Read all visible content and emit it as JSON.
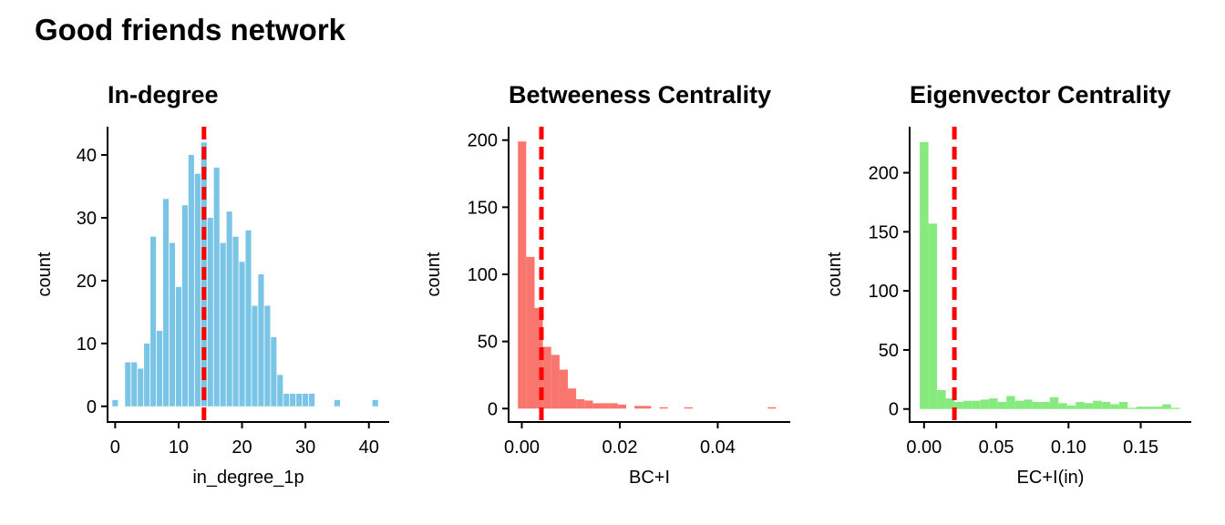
{
  "title": "Good friends network",
  "chart_data": [
    {
      "type": "bar",
      "title": "In-degree",
      "xlabel": "in_degree_1p",
      "ylabel": "count",
      "color": "#7ac4e6",
      "reference_line": {
        "x": 14,
        "color": "#ff0000",
        "style": "dashed"
      },
      "xlim": [
        -1.2,
        43.2
      ],
      "ylim": [
        -2.5,
        44.5
      ],
      "xticks": [
        0,
        10,
        20,
        30,
        40
      ],
      "yticks": [
        0,
        10,
        20,
        30,
        40
      ],
      "x": [
        0,
        1,
        2,
        3,
        4,
        5,
        6,
        7,
        8,
        9,
        10,
        11,
        12,
        13,
        14,
        15,
        16,
        17,
        18,
        19,
        20,
        21,
        22,
        23,
        24,
        25,
        26,
        27,
        28,
        29,
        30,
        31,
        32,
        33,
        34,
        35,
        36,
        37,
        38,
        39,
        40,
        41
      ],
      "values": [
        1,
        0,
        7,
        7,
        6,
        10,
        27,
        12,
        33,
        26,
        19,
        32,
        40,
        37,
        42,
        30,
        38,
        26,
        31,
        27,
        23,
        28,
        16,
        21,
        16,
        11,
        5,
        2,
        2,
        2,
        2,
        2,
        0,
        0,
        0,
        1,
        0,
        0,
        0,
        0,
        0,
        1
      ]
    },
    {
      "type": "bar",
      "title": "Betweeness Centrality",
      "xlabel": "BC+I",
      "ylabel": "count",
      "color": "#f8766d",
      "reference_line": {
        "x": 0.004,
        "color": "#ff0000",
        "style": "dashed"
      },
      "xlim": [
        -0.0027,
        0.0548
      ],
      "ylim": [
        -10,
        210
      ],
      "xticks": [
        0.0,
        0.02,
        0.04
      ],
      "xtick_labels": [
        "0.00",
        "0.02",
        "0.04"
      ],
      "yticks": [
        0,
        50,
        100,
        150,
        200
      ],
      "bin_width": 0.0017,
      "x": [
        5e-05,
        0.00175,
        0.00345,
        0.00515,
        0.00685,
        0.00855,
        0.01025,
        0.01195,
        0.01365,
        0.01535,
        0.01705,
        0.01875,
        0.02045,
        0.02215,
        0.02385,
        0.02555,
        0.02725,
        0.02895,
        0.03065,
        0.03235,
        0.03405,
        0.03575,
        0.03745,
        0.03915,
        0.04085,
        0.04255,
        0.04425,
        0.04595,
        0.04765,
        0.04935,
        0.05105
      ],
      "values": [
        199,
        113,
        75,
        46,
        40,
        29,
        15,
        7,
        6,
        4,
        4,
        4,
        3,
        0,
        2,
        2,
        0,
        1,
        0,
        0,
        1,
        0,
        0,
        0,
        0,
        0,
        0,
        0,
        0,
        0,
        1
      ]
    },
    {
      "type": "bar",
      "title": "Eigenvector Centrality",
      "xlabel": "EC+I(in)",
      "ylabel": "count",
      "color": "#87ea7e",
      "reference_line": {
        "x": 0.021,
        "color": "#ff0000",
        "style": "dashed"
      },
      "xlim": [
        -0.01,
        0.185
      ],
      "ylim": [
        -11,
        239
      ],
      "xticks": [
        0.0,
        0.05,
        0.1,
        0.15
      ],
      "xtick_labels": [
        "0.00",
        "0.05",
        "0.10",
        "0.15"
      ],
      "yticks": [
        0,
        50,
        100,
        150,
        200
      ],
      "bin_width": 0.006,
      "x": [
        0.0,
        0.006,
        0.012,
        0.018,
        0.024,
        0.03,
        0.036,
        0.042,
        0.048,
        0.054,
        0.06,
        0.066,
        0.072,
        0.078,
        0.084,
        0.09,
        0.096,
        0.102,
        0.108,
        0.114,
        0.12,
        0.126,
        0.132,
        0.138,
        0.144,
        0.15,
        0.156,
        0.162,
        0.168,
        0.174
      ],
      "values": [
        226,
        157,
        16,
        9,
        6,
        7,
        7,
        8,
        9,
        6,
        11,
        7,
        8,
        6,
        6,
        10,
        5,
        3,
        6,
        5,
        7,
        6,
        4,
        6,
        1,
        2,
        2,
        2,
        4,
        1
      ]
    }
  ]
}
